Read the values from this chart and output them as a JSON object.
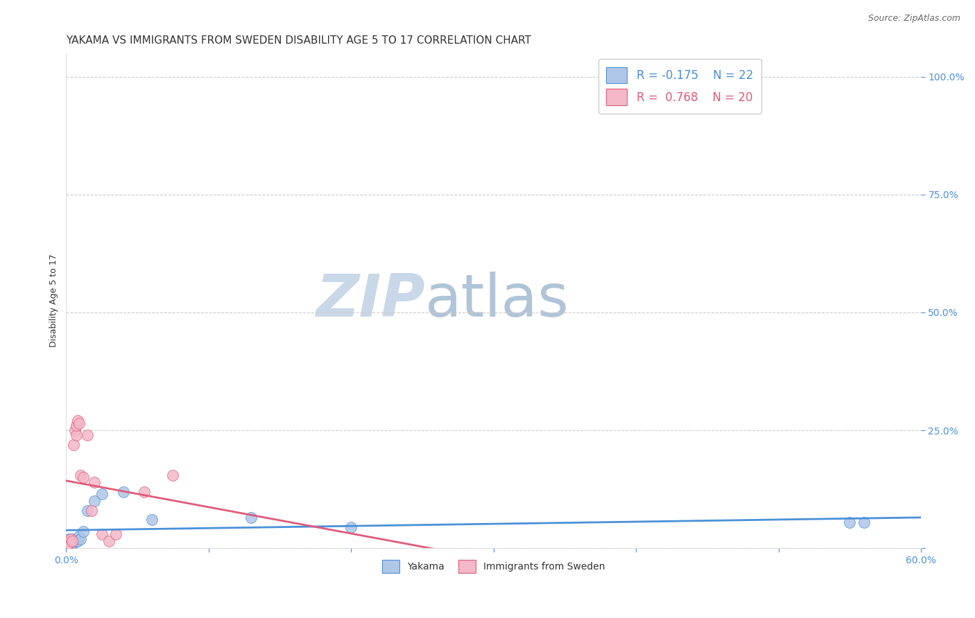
{
  "title": "YAKAMA VS IMMIGRANTS FROM SWEDEN DISABILITY AGE 5 TO 17 CORRELATION CHART",
  "source": "Source: ZipAtlas.com",
  "ylabel": "Disability Age 5 to 17",
  "xlim": [
    0.0,
    0.6
  ],
  "ylim": [
    0.0,
    1.05
  ],
  "xtick_labels": [
    "0.0%",
    "",
    "",
    "",
    "",
    "",
    "60.0%"
  ],
  "xtick_vals": [
    0.0,
    0.1,
    0.2,
    0.3,
    0.4,
    0.5,
    0.6
  ],
  "ytick_labels": [
    "",
    "25.0%",
    "50.0%",
    "75.0%",
    "100.0%"
  ],
  "ytick_vals": [
    0.0,
    0.25,
    0.5,
    0.75,
    1.0
  ],
  "yakama_x": [
    0.001,
    0.002,
    0.002,
    0.003,
    0.003,
    0.004,
    0.005,
    0.006,
    0.007,
    0.008,
    0.009,
    0.01,
    0.012,
    0.015,
    0.02,
    0.025,
    0.04,
    0.06,
    0.13,
    0.2,
    0.55,
    0.56
  ],
  "yakama_y": [
    0.01,
    0.02,
    0.005,
    0.015,
    0.008,
    0.02,
    0.01,
    0.015,
    0.02,
    0.015,
    0.025,
    0.02,
    0.035,
    0.08,
    0.1,
    0.115,
    0.12,
    0.06,
    0.065,
    0.045,
    0.055,
    0.055
  ],
  "sweden_x": [
    0.001,
    0.002,
    0.003,
    0.004,
    0.005,
    0.006,
    0.007,
    0.007,
    0.008,
    0.009,
    0.01,
    0.012,
    0.015,
    0.018,
    0.02,
    0.025,
    0.03,
    0.035,
    0.055,
    0.075
  ],
  "sweden_y": [
    0.005,
    0.01,
    0.02,
    0.015,
    0.22,
    0.25,
    0.24,
    0.26,
    0.27,
    0.265,
    0.155,
    0.15,
    0.24,
    0.08,
    0.14,
    0.03,
    0.015,
    0.03,
    0.12,
    0.155
  ],
  "yakama_color": "#aec6e8",
  "sweden_color": "#f4b8c8",
  "yakama_line_color": "#4a90d9",
  "sweden_line_color": "#e05a7a",
  "R_yakama": -0.175,
  "N_yakama": 22,
  "R_sweden": 0.768,
  "N_sweden": 20,
  "legend_yakama": "Yakama",
  "legend_sweden": "Immigrants from Sweden",
  "watermark_zip": "ZIP",
  "watermark_atlas": "atlas",
  "watermark_color_zip": "#c8d8e8",
  "watermark_color_atlas": "#b0c4d8",
  "title_fontsize": 11,
  "label_fontsize": 9,
  "tick_fontsize": 10,
  "source_fontsize": 9,
  "marker_size": 130
}
